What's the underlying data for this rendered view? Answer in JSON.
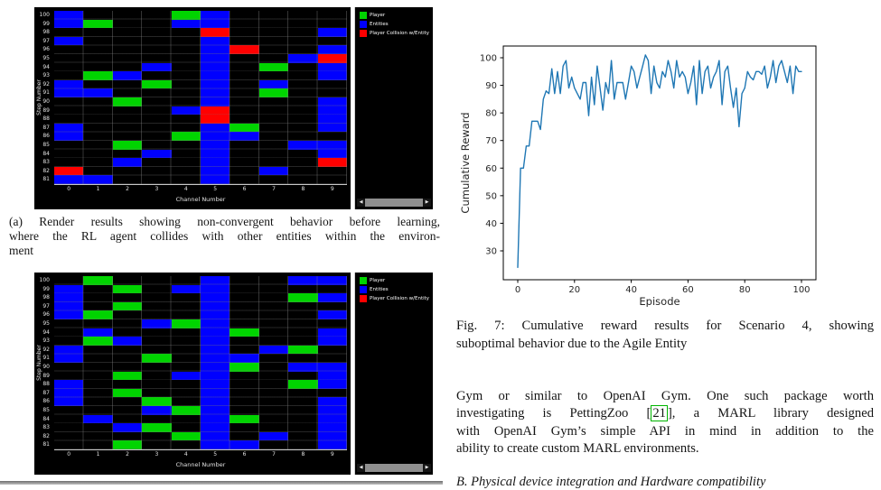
{
  "left_column": {
    "caption_a_lines": [
      "(a) Render results showing non-convergent behavior before learning,",
      "where the RL agent collides with other entities within the environ-",
      "ment"
    ]
  },
  "right_column": {
    "fig7_caption_lines": [
      "Fig. 7: Cumulative reward results for Scenario 4, showing",
      "suboptimal behavior due to the Agile Entity"
    ],
    "paragraph_lines": [
      {
        "text": "Gym or similar to OpenAI Gym. One such package worth"
      },
      {
        "before": "investigating is PettingZoo [",
        "cite": "21",
        "after": "], a MARL library designed"
      },
      {
        "text": "with OpenAI Gym’s simple API in mind in addition to the"
      },
      {
        "text": "ability to create custom MARL environments."
      }
    ],
    "cutoff_heading": "B. Physical device integration and Hardware compatibility"
  },
  "chart_data": [
    {
      "type": "heatmap",
      "title": "Render grid before learning (subfigure a)",
      "xlabel": "Channel Number",
      "ylabel": "Step Number",
      "x_ticks": [
        0,
        1,
        2,
        3,
        4,
        5,
        6,
        7,
        8,
        9
      ],
      "y_ticks": [
        100,
        99,
        98,
        97,
        96,
        95,
        94,
        93,
        92,
        91,
        90,
        89,
        88,
        87,
        86,
        85,
        84,
        83,
        82,
        81
      ],
      "legend": [
        {
          "label": "Player",
          "color": "#00d400",
          "key": "P"
        },
        {
          "label": "Entities",
          "color": "#0000ff",
          "key": "E"
        },
        {
          "label": "Player Collision w/Entity",
          "color": "#ff0000",
          "key": "C"
        }
      ],
      "cells": [
        "100:0:E",
        "100:4:P",
        "100:5:E",
        "99:0:E",
        "99:1:P",
        "99:4:E",
        "99:5:E",
        "98:5:C",
        "98:9:E",
        "97:0:E",
        "97:5:E",
        "96:5:E",
        "96:6:C",
        "96:9:E",
        "95:5:E",
        "95:8:E",
        "95:9:C",
        "94:3:E",
        "94:5:E",
        "94:7:P",
        "94:9:E",
        "93:1:P",
        "93:2:E",
        "93:5:E",
        "93:9:E",
        "92:0:E",
        "92:3:P",
        "92:5:E",
        "92:7:E",
        "91:0:E",
        "91:1:E",
        "91:5:E",
        "91:7:P",
        "90:2:P",
        "90:5:E",
        "90:9:E",
        "89:4:E",
        "89:5:C",
        "89:9:E",
        "88:5:C",
        "88:9:E",
        "87:0:E",
        "87:5:E",
        "87:6:P",
        "87:9:E",
        "86:0:E",
        "86:4:P",
        "86:5:E",
        "86:6:E",
        "85:2:P",
        "85:5:E",
        "85:8:E",
        "85:9:E",
        "84:3:E",
        "84:5:E",
        "84:9:E",
        "83:2:E",
        "83:5:E",
        "83:9:C",
        "82:0:C",
        "82:5:E",
        "82:7:E",
        "81:0:E",
        "81:1:E",
        "81:5:E"
      ]
    },
    {
      "type": "heatmap",
      "title": "Render grid after learning (bottom subfigure)",
      "xlabel": "Channel Number",
      "ylabel": "Step Number",
      "x_ticks": [
        0,
        1,
        2,
        3,
        4,
        5,
        6,
        7,
        8,
        9
      ],
      "y_ticks": [
        100,
        99,
        98,
        97,
        96,
        95,
        94,
        93,
        92,
        91,
        90,
        89,
        88,
        87,
        86,
        85,
        84,
        83,
        82,
        81
      ],
      "legend": [
        {
          "label": "Player",
          "color": "#00d400",
          "key": "P"
        },
        {
          "label": "Entities",
          "color": "#0000ff",
          "key": "E"
        },
        {
          "label": "Player Collision w/Entity",
          "color": "#ff0000",
          "key": "C"
        }
      ],
      "cells": [
        "100:1:P",
        "100:5:E",
        "100:8:E",
        "100:9:E",
        "99:0:E",
        "99:2:P",
        "99:4:E",
        "99:5:E",
        "98:0:E",
        "98:5:E",
        "98:8:P",
        "98:9:E",
        "97:0:E",
        "97:2:P",
        "97:5:E",
        "96:0:E",
        "96:1:P",
        "96:5:E",
        "96:9:E",
        "95:3:E",
        "95:4:P",
        "95:5:E",
        "94:1:E",
        "94:5:E",
        "94:6:P",
        "94:9:E",
        "93:1:P",
        "93:2:E",
        "93:5:E",
        "93:9:E",
        "92:0:E",
        "92:5:E",
        "92:7:E",
        "92:8:P",
        "91:0:E",
        "91:3:P",
        "91:5:E",
        "91:6:E",
        "90:5:E",
        "90:6:P",
        "90:8:E",
        "90:9:E",
        "89:2:P",
        "89:4:E",
        "89:5:E",
        "89:9:E",
        "88:0:E",
        "88:5:E",
        "88:8:P",
        "88:9:E",
        "87:0:E",
        "87:2:P",
        "87:5:E",
        "86:0:E",
        "86:3:P",
        "86:5:E",
        "86:9:E",
        "85:3:E",
        "85:4:P",
        "85:5:E",
        "85:9:E",
        "84:1:E",
        "84:5:E",
        "84:6:P",
        "84:9:E",
        "83:2:E",
        "83:3:P",
        "83:5:E",
        "83:9:E",
        "82:4:P",
        "82:5:E",
        "82:7:E",
        "82:9:E",
        "81:2:P",
        "81:5:E",
        "81:6:E",
        "81:9:E"
      ]
    },
    {
      "type": "line",
      "title": "Fig. 7 cumulative reward curve",
      "xlabel": "Episode",
      "ylabel": "Cumulative Reward",
      "x_ticks": [
        0,
        20,
        40,
        60,
        80,
        100
      ],
      "y_ticks": [
        30,
        40,
        50,
        60,
        70,
        80,
        90,
        100
      ],
      "xlim": [
        -5,
        105
      ],
      "ylim": [
        19.5,
        104.3
      ],
      "grid": false,
      "legend_position": "none",
      "series": [
        {
          "name": "cumulative_reward",
          "color": "#1f77b4",
          "x_start": 0,
          "x_step": 1,
          "values": [
            24,
            60,
            60,
            68,
            68,
            77,
            77,
            77,
            74,
            85,
            88,
            87,
            96,
            87,
            95,
            87,
            97,
            99,
            89,
            93,
            89,
            87,
            85,
            91,
            91,
            79,
            93,
            83,
            97,
            89,
            81,
            91,
            87,
            99,
            85,
            91,
            91,
            91,
            85,
            91,
            97,
            95,
            89,
            93,
            97,
            101,
            99,
            87,
            97,
            91,
            89,
            95,
            93,
            99,
            95,
            89,
            99,
            93,
            95,
            93,
            87,
            91,
            97,
            83,
            99,
            87,
            95,
            97,
            89,
            93,
            95,
            99,
            83,
            95,
            97,
            89,
            82,
            89,
            75,
            87,
            89,
            95,
            93,
            92,
            95,
            95,
            94,
            97,
            89,
            93,
            99,
            91,
            97,
            99,
            95,
            91,
            97,
            87,
            97,
            95,
            95
          ]
        }
      ]
    }
  ]
}
